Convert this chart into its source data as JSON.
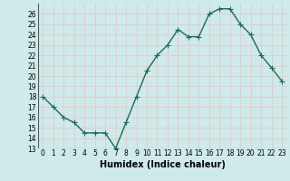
{
  "x": [
    0,
    1,
    2,
    3,
    4,
    5,
    6,
    7,
    8,
    9,
    10,
    11,
    12,
    13,
    14,
    15,
    16,
    17,
    18,
    19,
    20,
    21,
    22,
    23
  ],
  "y": [
    18,
    17,
    16,
    15.5,
    14.5,
    14.5,
    14.5,
    13,
    15.5,
    18,
    20.5,
    22,
    23,
    24.5,
    23.8,
    23.8,
    26,
    26.5,
    26.5,
    25,
    24,
    22,
    20.8,
    19.5
  ],
  "line_color": "#1a6b5a",
  "marker": "+",
  "marker_size": 4,
  "linewidth": 1.0,
  "xlabel": "Humidex (Indice chaleur)",
  "ylim": [
    13,
    27
  ],
  "xlim": [
    -0.5,
    23.5
  ],
  "yticks": [
    13,
    14,
    15,
    16,
    17,
    18,
    19,
    20,
    21,
    22,
    23,
    24,
    25,
    26
  ],
  "xtick_labels": [
    "0",
    "1",
    "2",
    "3",
    "4",
    "5",
    "6",
    "7",
    "8",
    "9",
    "10",
    "11",
    "12",
    "13",
    "14",
    "15",
    "16",
    "17",
    "18",
    "19",
    "20",
    "21",
    "22",
    "23"
  ],
  "bg_color": "#ceeaea",
  "grid_color": "#e8c8c8",
  "tick_fontsize": 5.5,
  "xlabel_fontsize": 7
}
